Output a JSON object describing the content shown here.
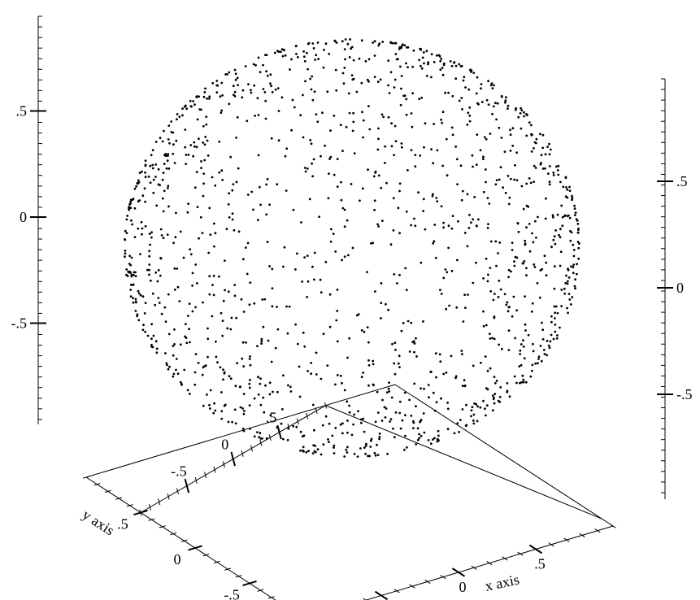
{
  "chart_data": {
    "type": "scatter3d",
    "title": "",
    "xlabel": "x axis",
    "ylabel": "y axis",
    "zlabel": "",
    "xlim": [
      -1,
      1
    ],
    "ylim": [
      -1,
      1
    ],
    "zlim": [
      -1,
      1
    ],
    "grid": false,
    "shape": "unit sphere surface",
    "point_count": 1500,
    "x_ticks": {
      "labels": [
        "-.5",
        "0",
        ".5"
      ],
      "values": [
        -0.5,
        0,
        0.5
      ]
    },
    "y_ticks": {
      "labels": [
        "-.5",
        "0",
        ".5"
      ],
      "values": [
        -0.5,
        0,
        0.5
      ]
    },
    "z_ticks": {
      "labels": [
        "-.5",
        "0",
        ".5"
      ],
      "values": [
        -0.5,
        0,
        0.5
      ]
    },
    "far_x_ticks": {
      "labels": [
        "-.5",
        "0",
        ".5"
      ],
      "values": [
        -0.5,
        0,
        0.5
      ]
    },
    "far_y_ticks": {
      "labels": [
        "-.5",
        "0",
        ".5"
      ],
      "values": [
        -0.5,
        0,
        0.5
      ]
    },
    "right_z_ticks": {
      "labels": [
        "-.5",
        "0",
        ".5"
      ],
      "values": [
        -0.5,
        0,
        0.5
      ]
    },
    "point_color": "#000000"
  }
}
